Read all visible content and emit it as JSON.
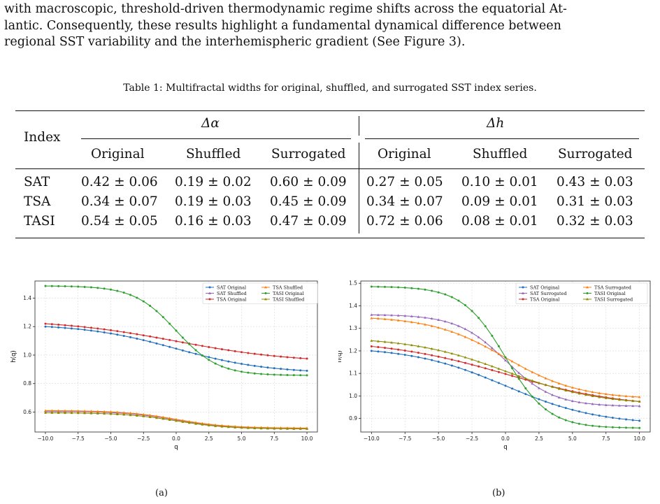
{
  "paragraph": {
    "line1": "with macroscopic, threshold-driven thermodynamic regime shifts across the equatorial At-",
    "line2": "lantic. Consequently, these results highlight a fundamental dynamical difference between",
    "line3": "regional SST variability and the interhemispheric gradient (See Figure 3)."
  },
  "table": {
    "caption": "Table 1: Multifractal widths for original, shuffled, and surrogated SST index series.",
    "index_header": "Index",
    "group1": "Δα",
    "group2": "Δh",
    "subheaders": [
      "Original",
      "Shuffled",
      "Surrogated",
      "Original",
      "Shuffled",
      "Surrogated"
    ],
    "rows": [
      {
        "index": "SAT",
        "cells": [
          "0.42 ± 0.06",
          "0.19 ± 0.02",
          "0.60 ± 0.09",
          "0.27 ± 0.05",
          "0.10 ± 0.01",
          "0.43 ± 0.03"
        ]
      },
      {
        "index": "TSA",
        "cells": [
          "0.34 ± 0.07",
          "0.19 ± 0.03",
          "0.45 ± 0.09",
          "0.34 ± 0.07",
          "0.09 ± 0.01",
          "0.31 ± 0.03"
        ]
      },
      {
        "index": "TASI",
        "cells": [
          "0.54 ± 0.05",
          "0.16 ± 0.03",
          "0.47 ± 0.09",
          "0.72 ± 0.06",
          "0.08 ± 0.01",
          "0.32 ± 0.03"
        ]
      }
    ]
  },
  "chart_data": [
    {
      "type": "line",
      "label": "(a)",
      "xlabel": "q",
      "ylabel": "h(q)",
      "xlim": [
        -10.8,
        10.8
      ],
      "ylim": [
        0.46,
        1.52
      ],
      "xticks": [
        "−10.0",
        "−7.5",
        "−5.0",
        "−2.5",
        "0.0",
        "2.5",
        "5.0",
        "7.5",
        "10.0"
      ],
      "yticks": [
        "0.6",
        "0.8",
        "1.0",
        "1.2",
        "1.4"
      ],
      "grid": true,
      "legend_position": "top-right",
      "series": [
        {
          "name": "SAT Original",
          "color": "#1f6fc0",
          "marker": "circle",
          "hmax": 1.2,
          "hmin": 0.89,
          "width": 7
        },
        {
          "name": "SAT Shuffled",
          "color": "#9467bd",
          "marker": "triangle",
          "hmax": 0.605,
          "hmin": 0.485,
          "width": 4
        },
        {
          "name": "TSA Original",
          "color": "#d62728",
          "marker": "circle",
          "hmax": 1.22,
          "hmin": 0.975,
          "width": 9
        },
        {
          "name": "TSA Shuffled",
          "color": "#ff7f0e",
          "marker": "triangle",
          "hmax": 0.61,
          "hmin": 0.488,
          "width": 4
        },
        {
          "name": "TASI Original",
          "color": "#2ca02c",
          "marker": "circle",
          "hmax": 1.485,
          "hmin": 0.858,
          "width": 3.2
        },
        {
          "name": "TASI Shuffled",
          "color": "#8c8c00",
          "marker": "triangle",
          "hmax": 0.595,
          "hmin": 0.482,
          "width": 4
        }
      ]
    },
    {
      "type": "line",
      "label": "(b)",
      "xlabel": "q",
      "ylabel": "h(q)",
      "xlim": [
        -10.8,
        10.8
      ],
      "ylim": [
        0.84,
        1.51
      ],
      "xticks": [
        "−10.0",
        "−7.5",
        "−5.0",
        "−2.5",
        "0.0",
        "2.5",
        "5.0",
        "7.5",
        "10.0"
      ],
      "yticks": [
        "0.9",
        "1.0",
        "1.1",
        "1.2",
        "1.3",
        "1.4",
        "1.5"
      ],
      "grid": true,
      "legend_position": "top-right",
      "series": [
        {
          "name": "SAT Original",
          "color": "#1f6fc0",
          "marker": "circle",
          "hmax": 1.2,
          "hmin": 0.89,
          "width": 7
        },
        {
          "name": "SAT Surrogated",
          "color": "#9467bd",
          "marker": "triangle",
          "hmax": 1.36,
          "hmin": 0.955,
          "width": 3.6
        },
        {
          "name": "TSA Original",
          "color": "#d62728",
          "marker": "circle",
          "hmax": 1.22,
          "hmin": 0.975,
          "width": 9
        },
        {
          "name": "TSA Surrogated",
          "color": "#ff7f0e",
          "marker": "triangle",
          "hmax": 1.345,
          "hmin": 0.995,
          "width": 5.5
        },
        {
          "name": "TASI Original",
          "color": "#2ca02c",
          "marker": "circle",
          "hmax": 1.485,
          "hmin": 0.858,
          "width": 3.2
        },
        {
          "name": "TASI Surrogated",
          "color": "#8c8c00",
          "marker": "triangle",
          "hmax": 1.245,
          "hmin": 0.975,
          "width": 7
        }
      ]
    }
  ]
}
